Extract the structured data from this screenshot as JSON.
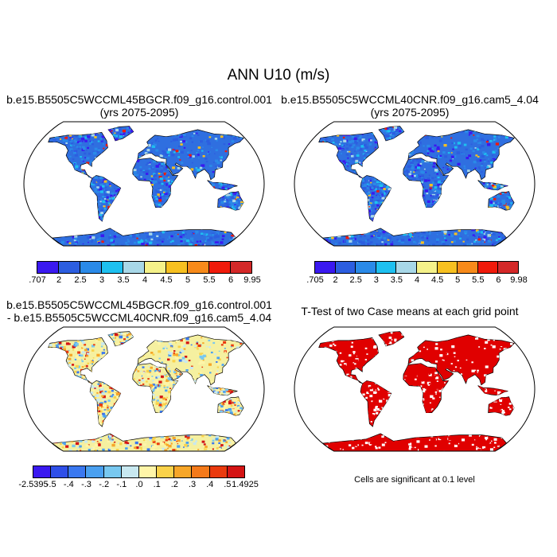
{
  "title": "ANN U10 (m/s)",
  "panels": [
    {
      "title_line1": "b.e15.B5505C5WCCML45BGCR.f09_g16.control.001",
      "title_line2": "(yrs 2075-2095)",
      "colorbar": {
        "labels": [
          ".707",
          "2",
          "2.5",
          "3",
          "3.5",
          "4",
          "4.5",
          "5",
          "5.5",
          "6",
          "9.95"
        ],
        "colors": [
          "#3a19f0",
          "#2c5ee0",
          "#2a8ae8",
          "#1ec0f0",
          "#a8d8e8",
          "#f5f28a",
          "#f7c020",
          "#f78a1a",
          "#f01a0a",
          "#d42828"
        ]
      }
    },
    {
      "title_line1": "b.e15.B5505C5WCCML40CNR.f09_g16.cam5_4.04",
      "title_line2": "(yrs 2075-2095)",
      "colorbar": {
        "labels": [
          ".705",
          "2",
          "2.5",
          "3",
          "3.5",
          "4",
          "4.5",
          "5",
          "5.5",
          "6",
          "9.98"
        ],
        "colors": [
          "#3a19f0",
          "#2c5ee0",
          "#2a8ae8",
          "#1ec0f0",
          "#a8d8e8",
          "#f5f28a",
          "#f7c020",
          "#f78a1a",
          "#f01a0a",
          "#d42828"
        ]
      }
    },
    {
      "title_line1": "b.e15.B5505C5WCCML45BGCR.f09_g16.control.001",
      "title_line2": "- b.e15.B5505C5WCCML40CNR.f09_g16.cam5_4.04",
      "colorbar": {
        "labels": [
          "-2.5395",
          "-.5",
          "-.4",
          "-.3",
          "-.2",
          "-.1",
          ".0",
          ".1",
          ".2",
          ".3",
          ".4",
          ".5",
          "1.4925"
        ],
        "colors": [
          "#3a19f0",
          "#2f4fe8",
          "#3a78f0",
          "#4aa0f0",
          "#78c8f0",
          "#c8e8f0",
          "#fff5a8",
          "#fad24a",
          "#f7a628",
          "#f47a1a",
          "#ea3a0e",
          "#d41414"
        ]
      }
    },
    {
      "title_line1": "T-Test of two Case means at each grid point",
      "note": "Cells are significant at 0.1 level"
    }
  ],
  "palette": {
    "ocean": "#ffffff",
    "land_windspeed": "#2f6fe0",
    "land_diff": "#f5f0a0",
    "significant": "#e00000",
    "coast": "#000000"
  }
}
